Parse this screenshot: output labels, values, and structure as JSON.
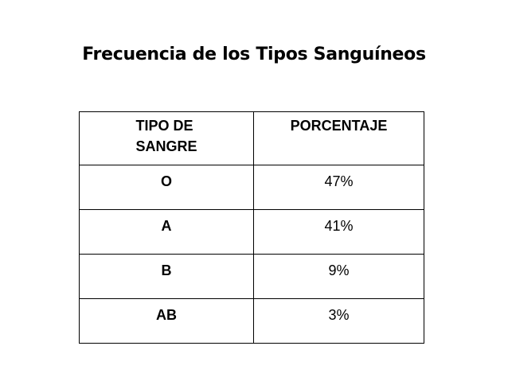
{
  "title": "Frecuencia de los Tipos Sanguíneos",
  "table": {
    "headers": {
      "type_line1": "TIPO DE",
      "type_line2": "SANGRE",
      "percentage": "PORCENTAJE"
    },
    "rows": [
      {
        "type": "O",
        "percentage": "47%"
      },
      {
        "type": "A",
        "percentage": "41%"
      },
      {
        "type": "B",
        "percentage": "9%"
      },
      {
        "type": "AB",
        "percentage": "3%"
      }
    ]
  }
}
